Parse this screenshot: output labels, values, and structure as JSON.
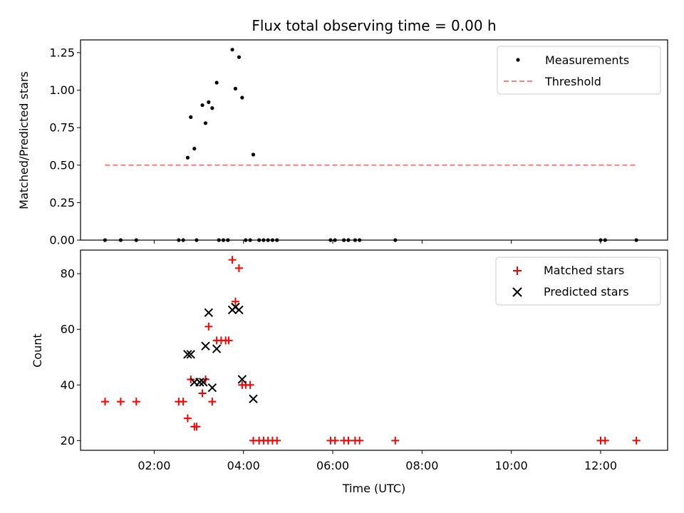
{
  "chart_data": [
    {
      "type": "scatter",
      "title": "Flux total observing time = 0.00 h",
      "xlabel": "",
      "ylabel": "Matched/Predicted stars",
      "x_unit": "hours UTC",
      "xlim": [
        0.35,
        13.5
      ],
      "ylim": [
        0,
        1.335
      ],
      "yticks": [
        0.0,
        0.25,
        0.5,
        0.75,
        1.0,
        1.25
      ],
      "ytick_labels": [
        "0.00",
        "0.25",
        "0.50",
        "0.75",
        "1.00",
        "1.25"
      ],
      "xticks": [
        2,
        4,
        6,
        8,
        10,
        12
      ],
      "legend": "top-right",
      "series": [
        {
          "name": "Measurements",
          "marker": "dot",
          "color": "#000000",
          "points": [
            [
              0.9,
              0
            ],
            [
              1.25,
              0
            ],
            [
              1.6,
              0
            ],
            [
              2.55,
              0
            ],
            [
              2.65,
              0
            ],
            [
              2.95,
              0
            ],
            [
              3.45,
              0
            ],
            [
              3.55,
              0
            ],
            [
              3.65,
              0
            ],
            [
              4.05,
              0
            ],
            [
              4.15,
              0
            ],
            [
              4.35,
              0
            ],
            [
              4.45,
              0
            ],
            [
              4.55,
              0
            ],
            [
              4.65,
              0
            ],
            [
              4.75,
              0
            ],
            [
              5.95,
              0
            ],
            [
              6.05,
              0
            ],
            [
              6.25,
              0
            ],
            [
              6.35,
              0
            ],
            [
              6.5,
              0
            ],
            [
              6.6,
              0
            ],
            [
              7.4,
              0
            ],
            [
              12.0,
              0
            ],
            [
              12.1,
              0
            ],
            [
              12.8,
              0
            ],
            [
              2.75,
              0.55
            ],
            [
              2.82,
              0.82
            ],
            [
              2.9,
              0.61
            ],
            [
              3.08,
              0.9
            ],
            [
              3.15,
              0.78
            ],
            [
              3.22,
              0.92
            ],
            [
              3.3,
              0.88
            ],
            [
              3.4,
              1.05
            ],
            [
              3.75,
              1.27
            ],
            [
              3.82,
              1.01
            ],
            [
              3.9,
              1.22
            ],
            [
              3.97,
              0.95
            ],
            [
              4.22,
              0.57
            ]
          ]
        },
        {
          "name": "Threshold",
          "style": "dashed",
          "color": "#ff7f7f",
          "x": [
            0.9,
            12.8
          ],
          "y": [
            0.5,
            0.5
          ]
        }
      ]
    },
    {
      "type": "scatter",
      "title": "",
      "xlabel": "Time (UTC)",
      "ylabel": "Count",
      "x_unit": "hours UTC",
      "xlim": [
        0.35,
        13.5
      ],
      "ylim": [
        16.5,
        88.5
      ],
      "yticks": [
        20,
        40,
        60,
        80
      ],
      "ytick_labels": [
        "20",
        "40",
        "60",
        "80"
      ],
      "xticks": [
        2,
        4,
        6,
        8,
        10,
        12
      ],
      "xtick_labels": [
        "02:00",
        "04:00",
        "06:00",
        "08:00",
        "10:00",
        "12:00"
      ],
      "legend": "top-right",
      "series": [
        {
          "name": "Matched stars",
          "marker": "plus",
          "color": "#ff0000",
          "points": [
            [
              0.9,
              34
            ],
            [
              1.25,
              34
            ],
            [
              1.6,
              34
            ],
            [
              2.55,
              34
            ],
            [
              2.65,
              34
            ],
            [
              2.75,
              28
            ],
            [
              2.82,
              42
            ],
            [
              2.9,
              25
            ],
            [
              2.95,
              25
            ],
            [
              3.08,
              37
            ],
            [
              3.15,
              42
            ],
            [
              3.22,
              61
            ],
            [
              3.3,
              34
            ],
            [
              3.4,
              56
            ],
            [
              3.5,
              56
            ],
            [
              3.6,
              56
            ],
            [
              3.67,
              56
            ],
            [
              3.75,
              85
            ],
            [
              3.82,
              70
            ],
            [
              3.9,
              82
            ],
            [
              3.97,
              40
            ],
            [
              4.05,
              40
            ],
            [
              4.15,
              40
            ],
            [
              4.22,
              20
            ],
            [
              4.35,
              20
            ],
            [
              4.45,
              20
            ],
            [
              4.55,
              20
            ],
            [
              4.65,
              20
            ],
            [
              4.75,
              20
            ],
            [
              5.95,
              20
            ],
            [
              6.05,
              20
            ],
            [
              6.25,
              20
            ],
            [
              6.35,
              20
            ],
            [
              6.5,
              20
            ],
            [
              6.6,
              20
            ],
            [
              7.4,
              20
            ],
            [
              12.0,
              20
            ],
            [
              12.1,
              20
            ],
            [
              12.8,
              20
            ]
          ]
        },
        {
          "name": "Predicted stars",
          "marker": "x",
          "color": "#000000",
          "points": [
            [
              2.75,
              51
            ],
            [
              2.82,
              51
            ],
            [
              2.9,
              41
            ],
            [
              3.02,
              41
            ],
            [
              3.1,
              41
            ],
            [
              3.15,
              54
            ],
            [
              3.22,
              66
            ],
            [
              3.3,
              39
            ],
            [
              3.4,
              53
            ],
            [
              3.75,
              67
            ],
            [
              3.82,
              68
            ],
            [
              3.9,
              67
            ],
            [
              3.97,
              42
            ],
            [
              4.22,
              35
            ]
          ]
        }
      ]
    }
  ]
}
